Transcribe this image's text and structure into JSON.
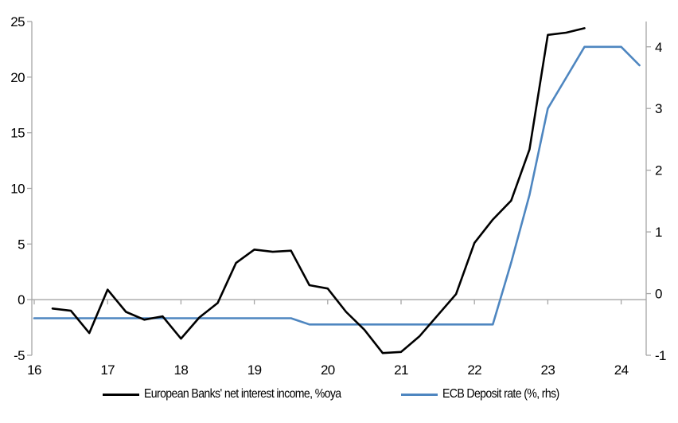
{
  "colors": {
    "background": "#FFFFFF",
    "axis": "#A6A6A6",
    "text": "#000000",
    "nii_line": "#000000",
    "ecb_line": "#4E86C0"
  },
  "chart_data": {
    "type": "line",
    "title": "",
    "xlabel": "",
    "ylabel_left": "",
    "ylabel_right": "",
    "grid": "zero-line-only",
    "legend_position": "bottom",
    "x_axis": {
      "tick_labels": [
        "16",
        "17",
        "18",
        "19",
        "20",
        "21",
        "22",
        "23",
        "24"
      ],
      "tick_values": [
        16,
        17,
        18,
        19,
        20,
        21,
        22,
        23,
        24
      ],
      "min": 15.97,
      "max": 24.34
    },
    "left_axis": {
      "min": -5,
      "max": 25,
      "ticks": [
        -5,
        0,
        5,
        10,
        15,
        20,
        25
      ]
    },
    "right_axis": {
      "min": -1,
      "max": 4.41,
      "ticks": [
        -1,
        0,
        1,
        2,
        3,
        4
      ]
    },
    "series": [
      {
        "name": "European Banks' net interest income, %oya",
        "axis": "left",
        "color_key": "nii_line",
        "x": [
          16.25,
          16.5,
          16.75,
          17.0,
          17.25,
          17.5,
          17.75,
          18.0,
          18.25,
          18.5,
          18.75,
          19.0,
          19.25,
          19.5,
          19.75,
          20.0,
          20.25,
          20.5,
          20.75,
          21.0,
          21.25,
          21.5,
          21.75,
          22.0,
          22.25,
          22.5,
          22.75,
          23.0,
          23.25,
          23.5
        ],
        "values": [
          -0.8,
          -1.0,
          -3.0,
          0.9,
          -1.1,
          -1.8,
          -1.5,
          -3.5,
          -1.6,
          -0.3,
          3.3,
          4.5,
          4.3,
          4.4,
          1.3,
          1.0,
          -1.1,
          -2.7,
          -4.8,
          -4.7,
          -3.3,
          -1.4,
          0.5,
          5.1,
          7.2,
          8.9,
          13.5,
          23.8,
          24.0,
          24.4
        ]
      },
      {
        "name": "ECB Deposit rate (%, rhs)",
        "axis": "right",
        "color_key": "ecb_line",
        "x": [
          16.0,
          16.25,
          16.5,
          16.75,
          17.0,
          17.25,
          17.5,
          17.75,
          18.0,
          18.25,
          18.5,
          18.75,
          19.0,
          19.25,
          19.5,
          19.75,
          20.0,
          20.25,
          20.5,
          20.75,
          21.0,
          21.25,
          21.5,
          21.75,
          22.0,
          22.25,
          22.5,
          22.75,
          23.0,
          23.25,
          23.5,
          23.75,
          24.0,
          24.25
        ],
        "values": [
          -0.4,
          -0.4,
          -0.4,
          -0.4,
          -0.4,
          -0.4,
          -0.4,
          -0.4,
          -0.4,
          -0.4,
          -0.4,
          -0.4,
          -0.4,
          -0.4,
          -0.4,
          -0.5,
          -0.5,
          -0.5,
          -0.5,
          -0.5,
          -0.5,
          -0.5,
          -0.5,
          -0.5,
          -0.5,
          -0.5,
          0.5,
          1.6,
          3.0,
          3.5,
          4.0,
          4.0,
          4.0,
          3.7
        ]
      }
    ]
  },
  "legend": {
    "item1": "European Banks' net interest income, %oya",
    "item2": "ECB Deposit rate (%, rhs)"
  }
}
